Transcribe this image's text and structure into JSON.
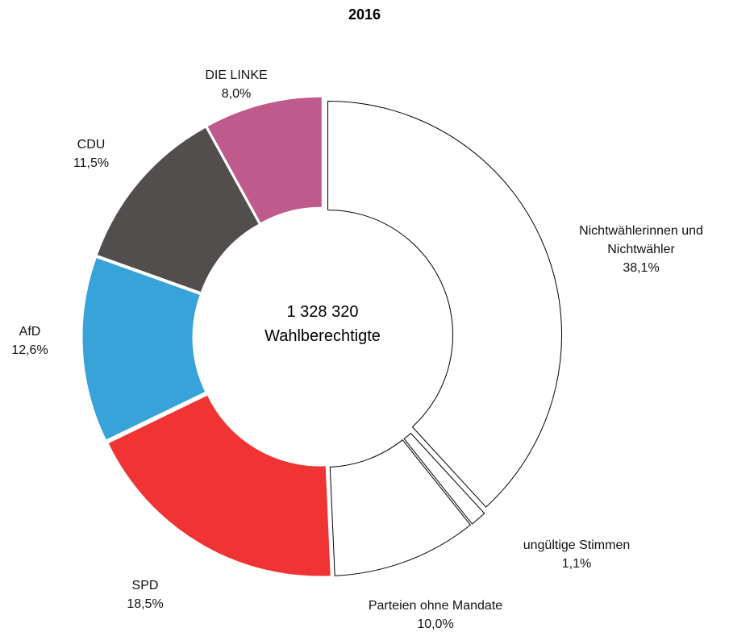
{
  "chart_data": {
    "type": "donut",
    "title": "2016",
    "center_text": [
      "1 328 320",
      "Wahlberechtigte"
    ],
    "categories": [
      "Nichtwählerinnen und Nichtwähler",
      "ungültige Stimmen",
      "Parteien ohne Mandate",
      "SPD",
      "AfD",
      "CDU",
      "DIE LINKE"
    ],
    "values": [
      38.1,
      1.1,
      10.0,
      18.5,
      12.6,
      11.5,
      8.0
    ],
    "value_labels": [
      "38,1%",
      "1,1%",
      "10,0%",
      "18,5%",
      "12,6%",
      "11,5%",
      "8,0%"
    ],
    "colors": [
      "#ffffff",
      "#ffffff",
      "#ffffff",
      "#f03434",
      "#38a3d9",
      "#534e4e",
      "#bf5b8c"
    ]
  }
}
